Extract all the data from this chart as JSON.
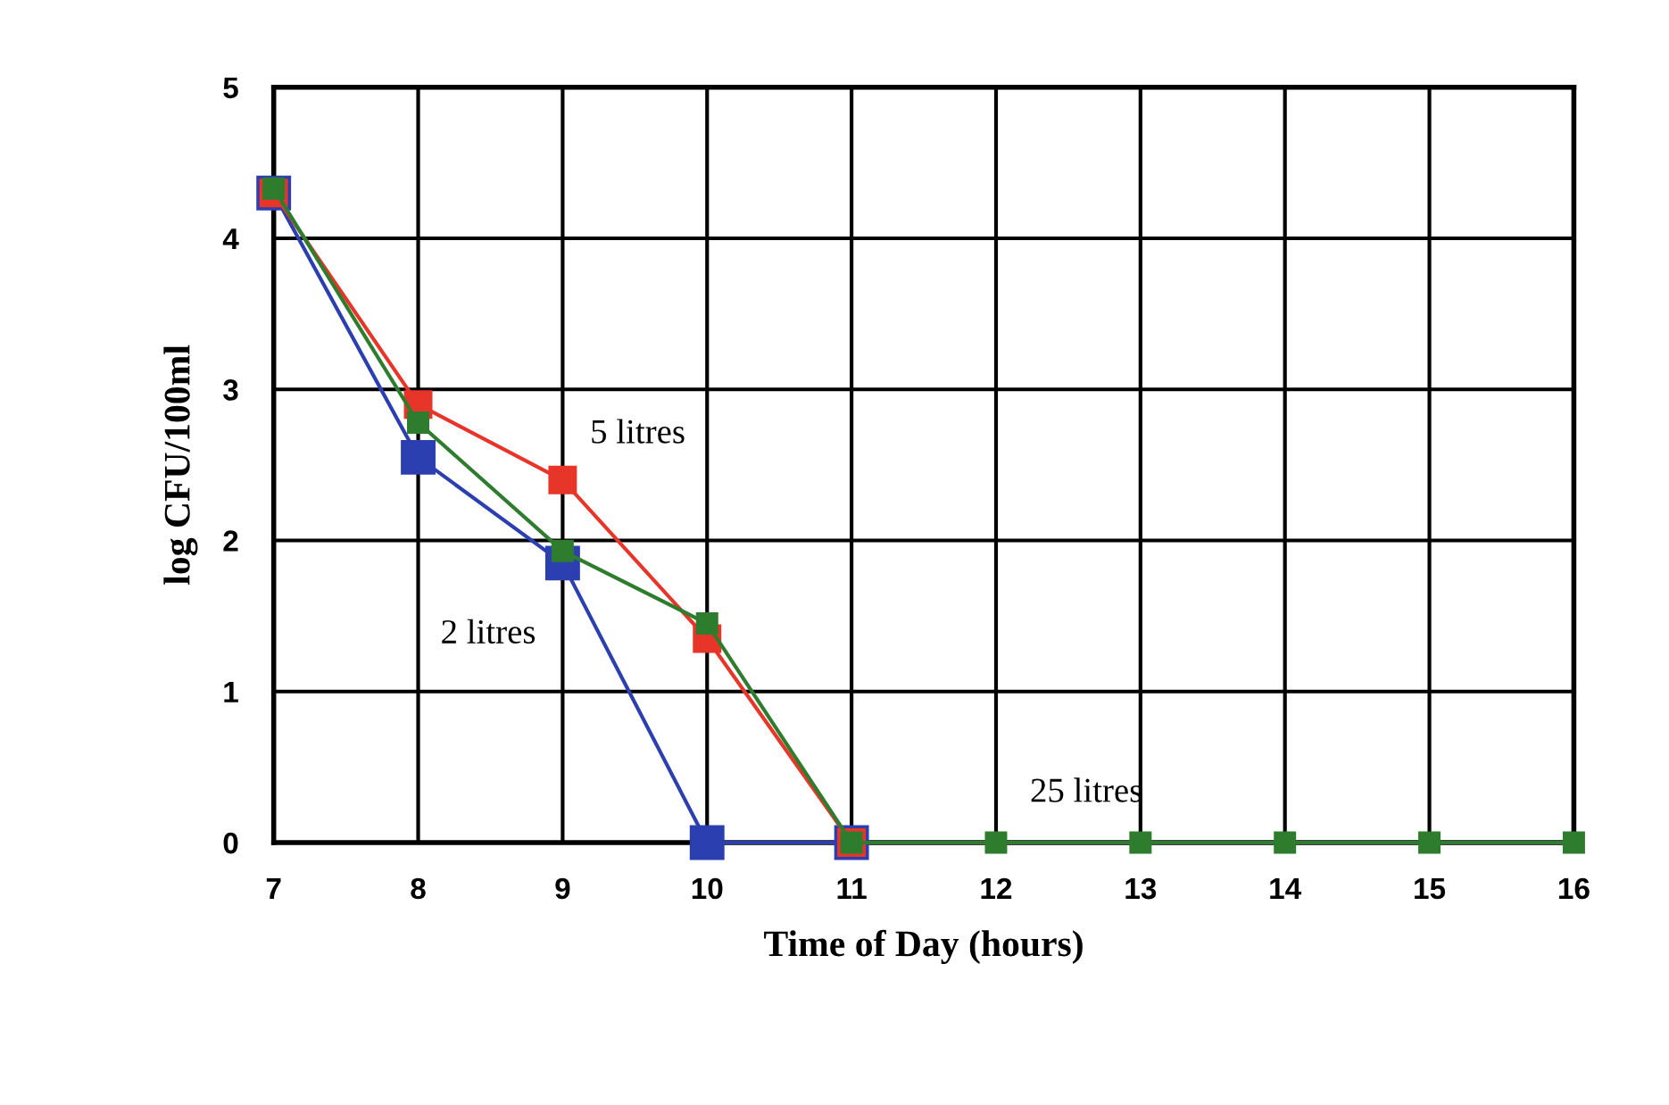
{
  "chart_data": {
    "type": "line",
    "xlabel": "Time of Day (hours)",
    "ylabel": "log CFU/100ml",
    "x": [
      7,
      8,
      9,
      10,
      11,
      12,
      13,
      14,
      15,
      16
    ],
    "series": [
      {
        "name": "2 litres",
        "color": "#2b3fb0",
        "values": [
          4.3,
          2.55,
          1.85,
          0,
          0,
          null,
          null,
          null,
          null,
          null
        ]
      },
      {
        "name": "5 litres",
        "color": "#e8352a",
        "values": [
          4.3,
          2.9,
          2.4,
          1.35,
          0,
          null,
          null,
          null,
          null,
          null
        ]
      },
      {
        "name": "25 litres",
        "color": "#2e7d2e",
        "values": [
          4.33,
          2.78,
          1.93,
          1.45,
          0,
          0,
          0,
          0,
          0,
          0
        ]
      }
    ],
    "xlim": [
      7,
      16
    ],
    "xticks": [
      7,
      8,
      9,
      10,
      11,
      12,
      13,
      14,
      15,
      16
    ],
    "ylim": [
      0,
      5
    ],
    "yticks": [
      0,
      1,
      2,
      3,
      4,
      5
    ],
    "grid": true,
    "marker": "square",
    "line_style": "solid",
    "legend": false
  }
}
